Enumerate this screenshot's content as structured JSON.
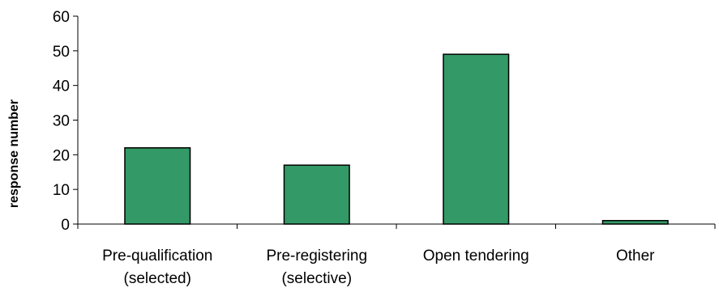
{
  "chart_data": {
    "type": "bar",
    "categories": [
      [
        "Pre-qualification",
        "(selected)"
      ],
      [
        "Pre-registering",
        "(selective)"
      ],
      [
        "Open tendering"
      ],
      [
        "Other"
      ]
    ],
    "values": [
      22,
      17,
      49,
      1
    ],
    "ylabel": "response number",
    "ylim": [
      0,
      60
    ],
    "yticks": [
      0,
      10,
      20,
      30,
      40,
      50,
      60
    ],
    "grid": false,
    "legend": "none",
    "bar_color": "#339966"
  }
}
